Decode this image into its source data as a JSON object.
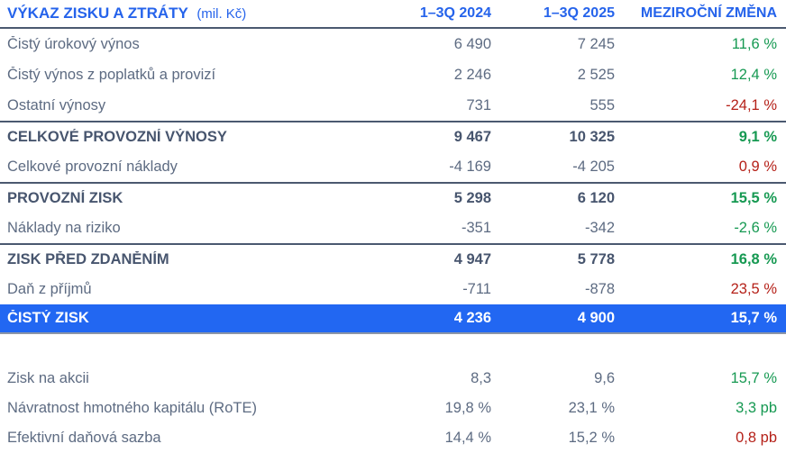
{
  "header": {
    "title": "VÝKAZ ZISKU A ZTRÁTY",
    "unit": "(mil. Kč)",
    "col_2024": "1–3Q 2024",
    "col_2025": "1–3Q 2025",
    "col_change": "MEZIROČNÍ ZMĚNA"
  },
  "colors": {
    "accent_blue": "#2563eb",
    "highlight_row_blue": "#2267f2",
    "positive_green": "#169952",
    "negative_red": "#b52119",
    "text_regular": "#5d6b82",
    "text_bold": "#47556e"
  },
  "statement": {
    "rows": [
      {
        "label": "Čistý úrokový výnos",
        "v2024": "6 490",
        "v2025": "7 245",
        "change": "11,6 %",
        "change_color": "#169952"
      },
      {
        "label": "Čistý výnos z poplatků a provizí",
        "v2024": "2 246",
        "v2025": "2 525",
        "change": "12,4 %",
        "change_color": "#169952"
      },
      {
        "label": "Ostatní výnosy",
        "v2024": "731",
        "v2025": "555",
        "change": "-24,1 %",
        "change_color": "#b52119"
      },
      {
        "label": "CELKOVÉ PROVOZNÍ VÝNOSY",
        "v2024": "9 467",
        "v2025": "10 325",
        "change": "9,1 %",
        "change_color": "#169952"
      },
      {
        "label": "Celkové provozní náklady",
        "v2024": "-4 169",
        "v2025": "-4 205",
        "change": "0,9 %",
        "change_color": "#b52119"
      },
      {
        "label": "PROVOZNÍ ZISK",
        "v2024": "5 298",
        "v2025": "6 120",
        "change": "15,5 %",
        "change_color": "#169952"
      },
      {
        "label": "Náklady na riziko",
        "v2024": "-351",
        "v2025": "-342",
        "change": "-2,6 %",
        "change_color": "#169952"
      },
      {
        "label": "ZISK PŘED ZDANĚNÍM",
        "v2024": "4 947",
        "v2025": "5 778",
        "change": "16,8 %",
        "change_color": "#169952"
      },
      {
        "label": "Daň z příjmů",
        "v2024": "-711",
        "v2025": "-878",
        "change": "23,5 %",
        "change_color": "#b52119"
      },
      {
        "label": "ČISTÝ ZISK",
        "v2024": "4 236",
        "v2025": "4 900",
        "change": "15,7 %",
        "change_color": "#ffffff"
      }
    ]
  },
  "ratios": {
    "rows": [
      {
        "label": "Zisk na akcii",
        "v2024": "8,3",
        "v2025": "9,6",
        "change": "15,7 %",
        "change_color": "#169952"
      },
      {
        "label": "Návratnost hmotného kapitálu (RoTE)",
        "v2024": "19,8 %",
        "v2025": "23,1 %",
        "change": "3,3 pb",
        "change_color": "#169952"
      },
      {
        "label": "Efektivní daňová sazba",
        "v2024": "14,4 %",
        "v2025": "15,2 %",
        "change": "0,8 pb",
        "change_color": "#b52119"
      }
    ]
  }
}
